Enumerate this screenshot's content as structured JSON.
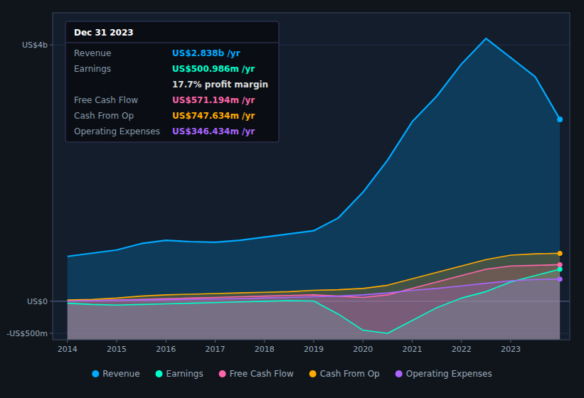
{
  "chart_data": {
    "type": "area",
    "x": [
      2014,
      2014.5,
      2015,
      2015.5,
      2016,
      2016.5,
      2017,
      2017.5,
      2018,
      2018.5,
      2019,
      2019.5,
      2020,
      2020.5,
      2021,
      2021.5,
      2022,
      2022.5,
      2023,
      2023.5,
      2024
    ],
    "series": [
      {
        "name": "Revenue",
        "color": "#00aaff",
        "values": [
          700,
          750,
          800,
          900,
          950,
          930,
          920,
          950,
          1000,
          1050,
          1100,
          1300,
          1700,
          2200,
          2800,
          3200,
          3700,
          4100,
          3800,
          3500,
          2838
        ]
      },
      {
        "name": "Earnings",
        "color": "#00ffcc",
        "values": [
          -30,
          -50,
          -60,
          -50,
          -40,
          -30,
          -20,
          -10,
          0,
          10,
          5,
          -200,
          -450,
          -500,
          -300,
          -100,
          50,
          150,
          300,
          400,
          501
        ]
      },
      {
        "name": "Free Cash Flow",
        "color": "#ff66aa",
        "values": [
          10,
          15,
          20,
          30,
          40,
          50,
          60,
          70,
          80,
          90,
          100,
          80,
          60,
          100,
          200,
          300,
          400,
          500,
          550,
          560,
          571
        ]
      },
      {
        "name": "Cash From Op",
        "color": "#ffaa00",
        "values": [
          20,
          30,
          50,
          80,
          100,
          110,
          120,
          130,
          140,
          150,
          170,
          180,
          200,
          250,
          350,
          450,
          550,
          650,
          720,
          740,
          748
        ]
      },
      {
        "name": "Operating Expenses",
        "color": "#aa66ff",
        "values": [
          5,
          10,
          15,
          20,
          25,
          30,
          35,
          40,
          50,
          60,
          70,
          80,
          100,
          130,
          170,
          200,
          240,
          280,
          320,
          340,
          346
        ]
      }
    ],
    "xlim": [
      2013.7,
      2024.2
    ],
    "xticks": [
      2014,
      2015,
      2016,
      2017,
      2018,
      2019,
      2020,
      2021,
      2022,
      2023
    ],
    "ylim": [
      -600,
      4500
    ],
    "yticks": [
      {
        "value": -500,
        "label": "-US$500m"
      },
      {
        "value": 0,
        "label": "US$0"
      },
      {
        "value": 4000,
        "label": "US$4b"
      }
    ],
    "grid": true,
    "legend": "bottom",
    "annotations": [
      {
        "title": "Dec 31 2023",
        "rows": [
          {
            "label": "Revenue",
            "value": "US$2.838b /yr",
            "color": "#00aaff"
          },
          {
            "label": "Earnings",
            "value": "US$500.986m /yr",
            "color": "#00ffcc"
          },
          {
            "value": "17.7% profit margin",
            "color": "#dddddd"
          },
          {
            "label": "Free Cash Flow",
            "value": "US$571.194m /yr",
            "color": "#ff66aa"
          },
          {
            "label": "Cash From Op",
            "value": "US$747.634m /yr",
            "color": "#ffaa00"
          },
          {
            "label": "Operating Expenses",
            "value": "US$346.434m /yr",
            "color": "#aa66ff"
          }
        ]
      }
    ]
  }
}
